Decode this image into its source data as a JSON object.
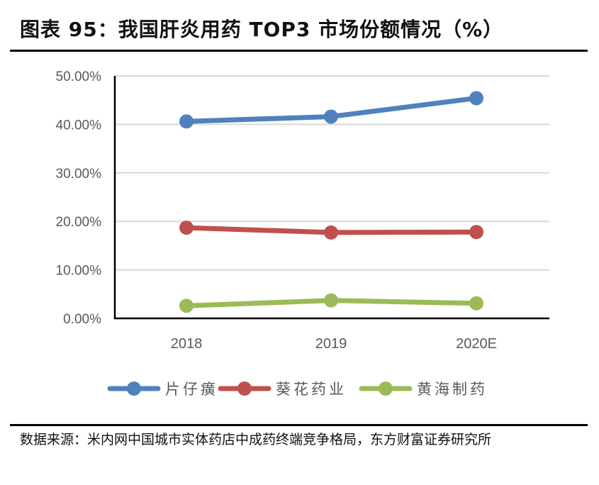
{
  "header": {
    "title": "图表 95：我国肝炎用药 TOP3 市场份额情况（%）"
  },
  "footer": {
    "source": "数据来源：米内网中国城市实体药店中成药终端竞争格局，东方财富证券研究所"
  },
  "colors": {
    "series_1": "#4f81bd",
    "series_2": "#c0504d",
    "series_3": "#9bbb59",
    "grid": "#d9d9d9",
    "axis": "#000000",
    "tick_text": "#595959"
  },
  "chart_data": {
    "type": "line",
    "title": "我国肝炎用药 TOP3 市场份额情况（%）",
    "xlabel": "",
    "ylabel": "",
    "categories": [
      "2018",
      "2019",
      "2020E"
    ],
    "series": [
      {
        "name": "片仔癀",
        "color": "#4f81bd",
        "values": [
          40.6,
          41.6,
          45.4
        ]
      },
      {
        "name": "葵花药业",
        "color": "#c0504d",
        "values": [
          18.7,
          17.7,
          17.8
        ]
      },
      {
        "name": "黄海制药",
        "color": "#9bbb59",
        "values": [
          2.6,
          3.7,
          3.1
        ]
      }
    ],
    "ylim": [
      0,
      50
    ],
    "yticks": [
      0,
      10,
      20,
      30,
      40,
      50
    ],
    "ytick_labels": [
      "0.00%",
      "10.00%",
      "20.00%",
      "30.00%",
      "40.00%",
      "50.00%"
    ],
    "grid": true,
    "legend_position": "bottom",
    "legend": [
      "片仔癀",
      "葵花药业",
      "黄海制药"
    ]
  }
}
